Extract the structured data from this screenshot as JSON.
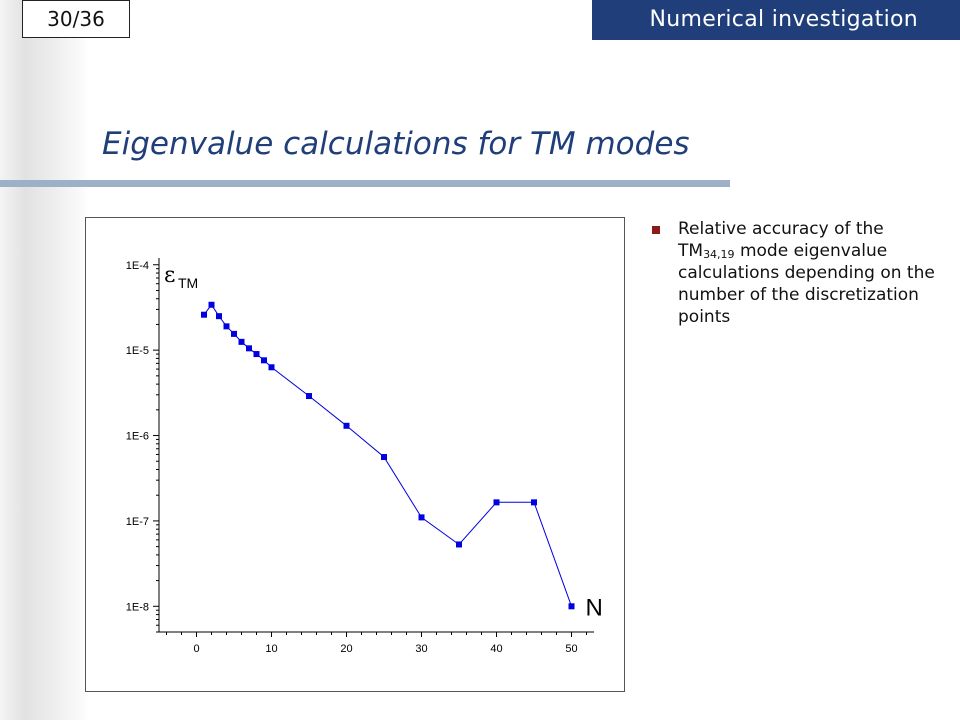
{
  "slide": {
    "page_number": "30/36",
    "section": "Numerical investigation",
    "title": "Eigenvalue calculations for TM modes"
  },
  "bullet": {
    "text_before": "Relative accuracy of the TM",
    "subscript": "34,19",
    "text_after": " mode eigenvalue calculations depending on the number of the discretization points"
  },
  "colors": {
    "banner": "#1f3e7a",
    "title": "#1f3e7a",
    "series": "#0000e0",
    "bullet": "#8b1a1a"
  },
  "chart_data": {
    "type": "line",
    "y_scale": "log",
    "xlim": [
      -5,
      53
    ],
    "ylim": [
      5e-09,
      0.00012
    ],
    "x_ticks": [
      0,
      10,
      20,
      30,
      40,
      50
    ],
    "x_tick_labels": [
      "0",
      "10",
      "20",
      "30",
      "40",
      "50"
    ],
    "y_ticks": [
      1e-08,
      1e-07,
      1e-06,
      1e-05,
      0.0001
    ],
    "y_tick_labels": [
      "1E-8",
      "1E-7",
      "1E-6",
      "1E-5",
      "1E-4"
    ],
    "y_axis_label": {
      "symbol": "ε",
      "subscript": "TM"
    },
    "x_axis_label": "N",
    "series": [
      {
        "marker": "square",
        "x": [
          1,
          2,
          3,
          4,
          5,
          6,
          7,
          8,
          9,
          10,
          15,
          20,
          25,
          30,
          35,
          40,
          45,
          50
        ],
        "y": [
          2.6e-05,
          3.4e-05,
          2.5e-05,
          1.9e-05,
          1.55e-05,
          1.25e-05,
          1.05e-05,
          9e-06,
          7.6e-06,
          6.3e-06,
          2.9e-06,
          1.3e-06,
          5.6e-07,
          1.1e-07,
          5.3e-08,
          1.65e-07,
          1.65e-07,
          1e-08
        ]
      }
    ]
  }
}
